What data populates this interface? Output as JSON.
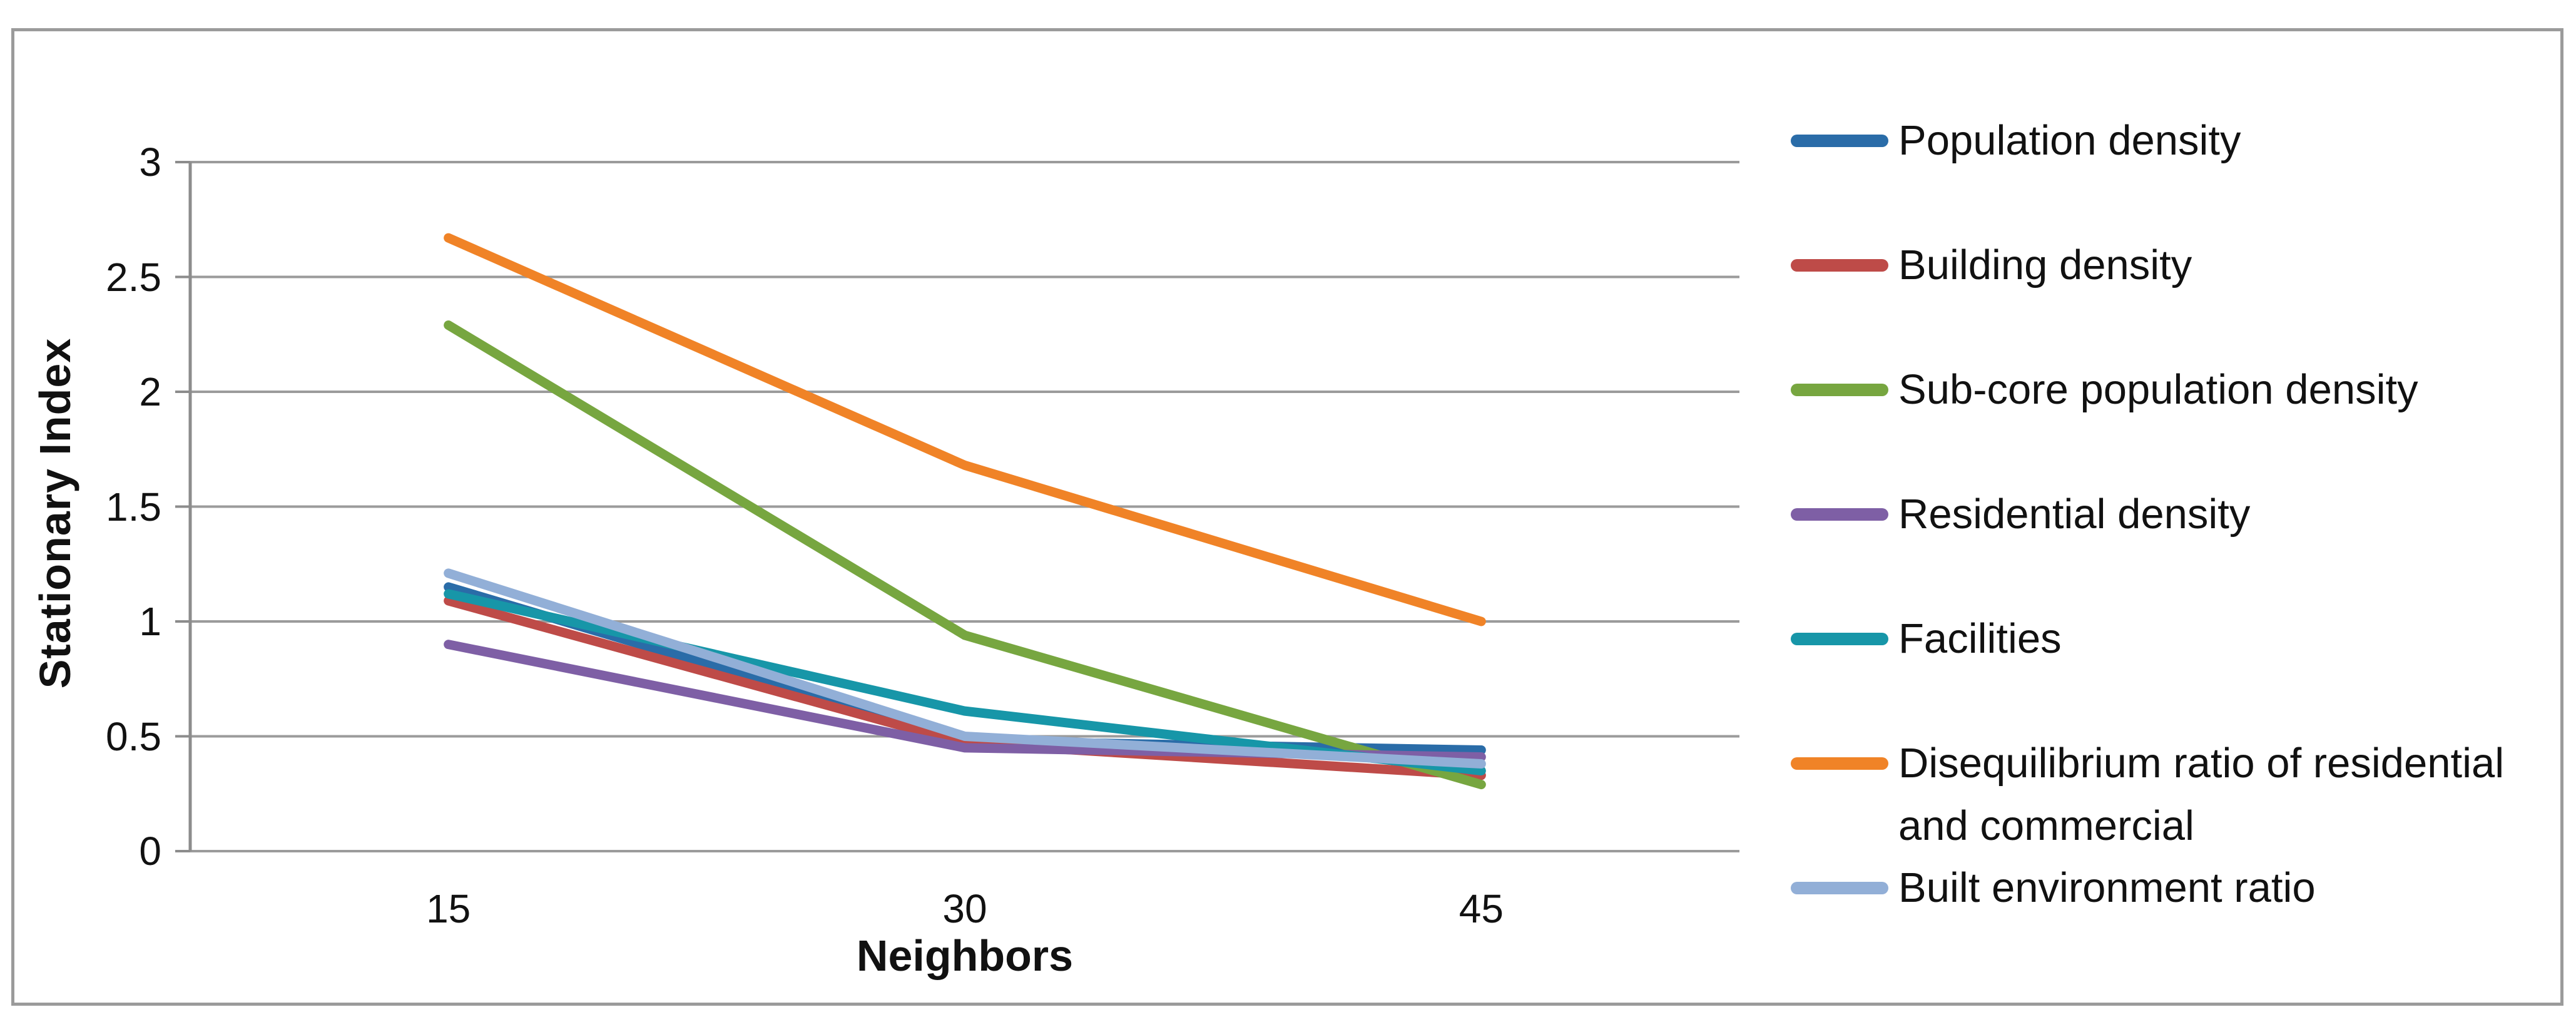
{
  "chart_data": {
    "type": "line",
    "title": "",
    "xlabel": "Neighbors",
    "ylabel": "Stationary Index",
    "x": [
      15,
      30,
      45
    ],
    "x_tick_labels": [
      "15",
      "30",
      "45"
    ],
    "ylim": [
      0,
      3
    ],
    "yticks": [
      0,
      0.5,
      1,
      1.5,
      2,
      2.5,
      3
    ],
    "y_tick_labels": [
      "0",
      "0.5",
      "1",
      "1.5",
      "2",
      "2.5",
      "3"
    ],
    "grid": true,
    "legend_position": "right",
    "series": [
      {
        "name": "Population density",
        "color": "#2A6CA8",
        "values": [
          1.15,
          0.48,
          0.44
        ]
      },
      {
        "name": "Building density",
        "color": "#BE4B48",
        "values": [
          1.09,
          0.47,
          0.33
        ]
      },
      {
        "name": "Sub-core population density",
        "color": "#77A640",
        "values": [
          2.29,
          0.94,
          0.29
        ]
      },
      {
        "name": "Residential density",
        "color": "#7E5FA5",
        "values": [
          0.9,
          0.45,
          0.41
        ]
      },
      {
        "name": "Facilities",
        "color": "#1796A8",
        "values": [
          1.12,
          0.61,
          0.35
        ]
      },
      {
        "name": "Disequilibrium ratio of residential and commercial",
        "color": "#F08327",
        "values": [
          2.67,
          1.68,
          1.0
        ]
      },
      {
        "name": "Built environment ratio",
        "color": "#92AFD7",
        "values": [
          1.21,
          0.5,
          0.38
        ]
      }
    ]
  }
}
